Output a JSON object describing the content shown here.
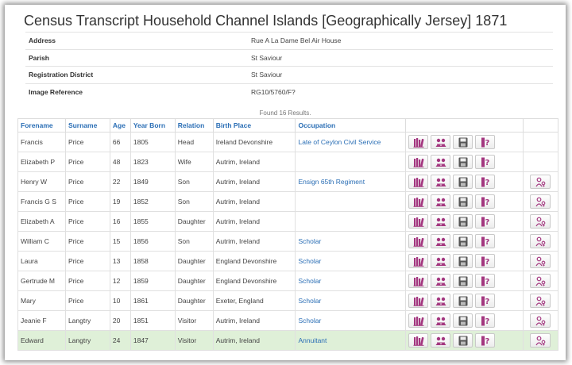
{
  "page": {
    "title": "Census Transcript Household Channel Islands [Geographically Jersey] 1871"
  },
  "household": [
    {
      "label": "Address",
      "value": "Rue A La Dame Bel Air House"
    },
    {
      "label": "Parish",
      "value": "St Saviour"
    },
    {
      "label": "Registration District",
      "value": "St Saviour"
    },
    {
      "label": "Image Reference",
      "value": "RG10/5760/F?"
    }
  ],
  "results_summary": "Found 16 Results.",
  "columns": [
    "Forename",
    "Surname",
    "Age",
    "Year Born",
    "Relation",
    "Birth Place",
    "Occupation"
  ],
  "rows": [
    {
      "forename": "Francis",
      "surname": "Price",
      "age": "66",
      "year_born": "1805",
      "relation": "Head",
      "birth_place": "Ireland Devonshire",
      "occupation": "Late of Ceylon Civil Service",
      "extra": false,
      "highlight": false
    },
    {
      "forename": "Elizabeth P",
      "surname": "Price",
      "age": "48",
      "year_born": "1823",
      "relation": "Wife",
      "birth_place": "Autrim, Ireland",
      "occupation": "",
      "extra": false,
      "highlight": false
    },
    {
      "forename": "Henry W",
      "surname": "Price",
      "age": "22",
      "year_born": "1849",
      "relation": "Son",
      "birth_place": "Autrim, Ireland",
      "occupation": "Ensign 65th Regiment",
      "extra": true,
      "highlight": false
    },
    {
      "forename": "Francis G S",
      "surname": "Price",
      "age": "19",
      "year_born": "1852",
      "relation": "Son",
      "birth_place": "Autrim, Ireland",
      "occupation": "",
      "extra": true,
      "highlight": false
    },
    {
      "forename": "Elizabeth A",
      "surname": "Price",
      "age": "16",
      "year_born": "1855",
      "relation": "Daughter",
      "birth_place": "Autrim, Ireland",
      "occupation": "",
      "extra": true,
      "highlight": false
    },
    {
      "forename": "William C",
      "surname": "Price",
      "age": "15",
      "year_born": "1856",
      "relation": "Son",
      "birth_place": "Autrim, Ireland",
      "occupation": "Scholar",
      "extra": true,
      "highlight": false
    },
    {
      "forename": "Laura",
      "surname": "Price",
      "age": "13",
      "year_born": "1858",
      "relation": "Daughter",
      "birth_place": "England Devonshire",
      "occupation": "Scholar",
      "extra": true,
      "highlight": false
    },
    {
      "forename": "Gertrude M",
      "surname": "Price",
      "age": "12",
      "year_born": "1859",
      "relation": "Daughter",
      "birth_place": "England Devonshire",
      "occupation": "Scholar",
      "extra": true,
      "highlight": false
    },
    {
      "forename": "Mary",
      "surname": "Price",
      "age": "10",
      "year_born": "1861",
      "relation": "Daughter",
      "birth_place": "Exeter, England",
      "occupation": "Scholar",
      "extra": true,
      "highlight": false
    },
    {
      "forename": "Jeanie F",
      "surname": "Langtry",
      "age": "20",
      "year_born": "1851",
      "relation": "Visitor",
      "birth_place": "Autrim, Ireland",
      "occupation": "Scholar",
      "extra": true,
      "highlight": false
    },
    {
      "forename": "Edward",
      "surname": "Langtry",
      "age": "24",
      "year_born": "1847",
      "relation": "Visitor",
      "birth_place": "Autrim, Ireland",
      "occupation": "Annuitant",
      "extra": true,
      "highlight": true
    }
  ],
  "icons": {
    "action_buttons": [
      "books-icon",
      "people-icon",
      "save-disk-icon",
      "question-icon"
    ],
    "extra_button": "person-key-icon",
    "icon_color": "#a3367f",
    "link_color": "#2a6eb5",
    "highlight_color": "#dff0d8"
  }
}
